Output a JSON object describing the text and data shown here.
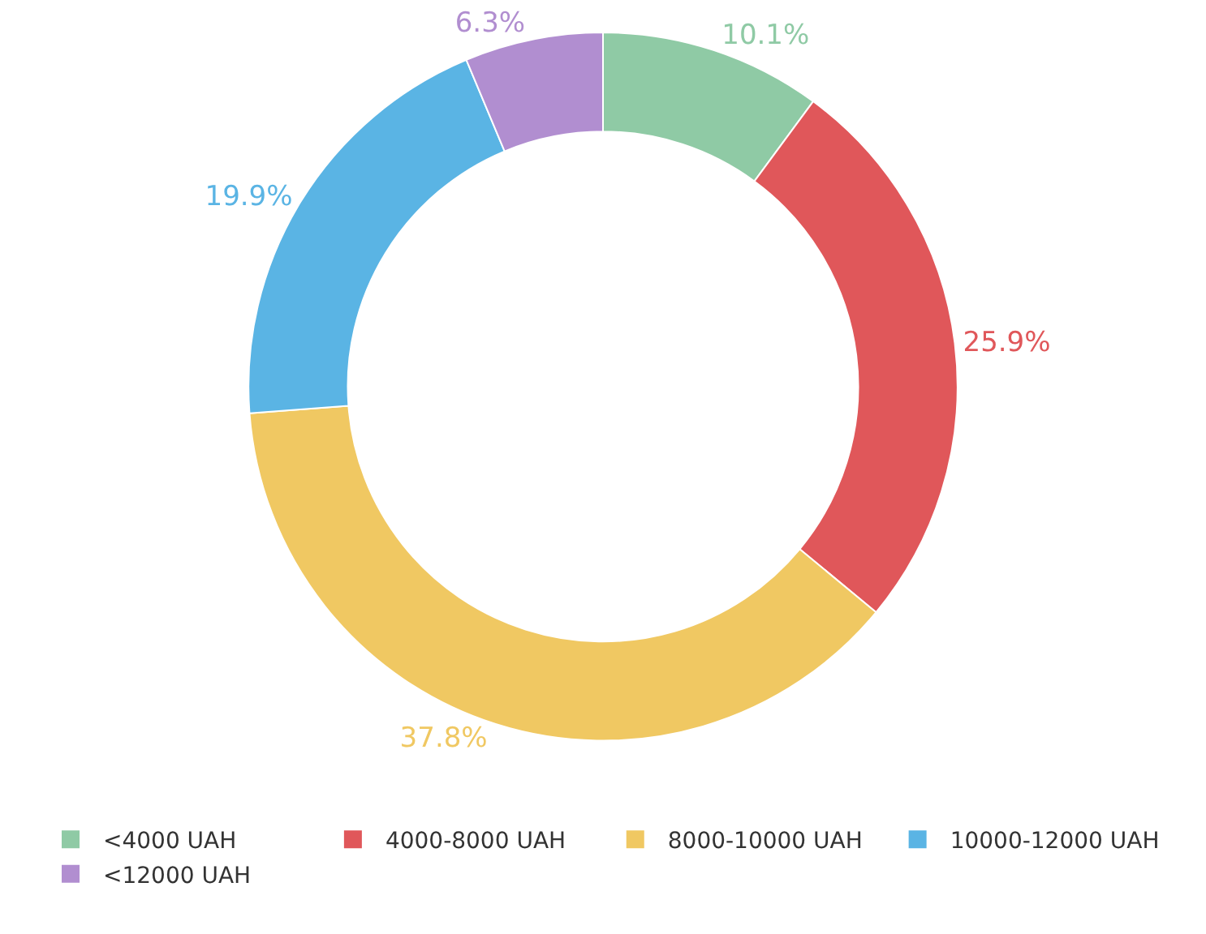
{
  "chart_data": {
    "type": "donut",
    "categories": [
      "<4000 UAH",
      "4000-8000 UAH",
      "8000-10000 UAH",
      "10000-12000 UAH",
      "<12000 UAH"
    ],
    "values": [
      10.1,
      25.9,
      37.8,
      19.9,
      6.3
    ],
    "value_labels": [
      "10.1%",
      "25.9%",
      "37.8%",
      "19.9%",
      "6.3%"
    ],
    "colors": [
      "#8fcaa5",
      "#e0575a",
      "#f0c862",
      "#5ab4e4",
      "#b18ed0"
    ],
    "legend": "bottom"
  }
}
